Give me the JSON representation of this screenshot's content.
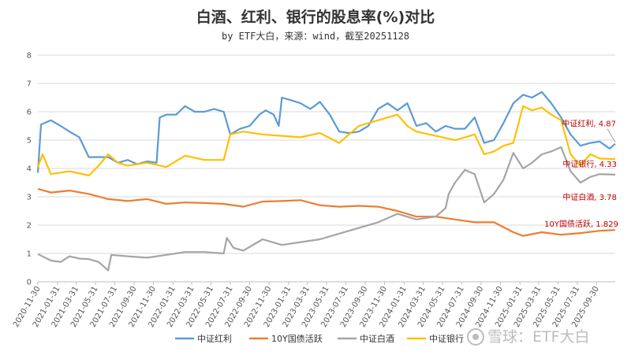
{
  "chart_data": {
    "type": "line",
    "title": "白酒、红利、银行的股息率(%)对比",
    "subtitle": "by ETF大白，来源：wind，截至20251128",
    "ylim": [
      0,
      8
    ],
    "yticks": [
      "0",
      "1",
      "2",
      "3",
      "4",
      "5",
      "6",
      "7",
      "8"
    ],
    "grid": true,
    "legend_position": "bottom",
    "x_range": [
      "2020-11-30",
      "2025-11-28"
    ],
    "x_tick_labels": [
      "2020-11-30",
      "2021-01-31",
      "2021-03-31",
      "2021-05-31",
      "2021-07-31",
      "2021-09-30",
      "2021-11-30",
      "2022-01-31",
      "2022-03-31",
      "2022-05-31",
      "2022-07-31",
      "2022-09-30",
      "2022-11-30",
      "2023-01-31",
      "2023-03-31",
      "2023-05-31",
      "2023-07-31",
      "2023-09-30",
      "2023-11-30",
      "2024-01-31",
      "2024-03-31",
      "2024-05-31",
      "2024-07-31",
      "2024-09-30",
      "2024-11-30",
      "2025-01-31",
      "2025-03-31",
      "2025-05-31",
      "2025-07-31",
      "2025-09-30"
    ],
    "series": [
      {
        "name": "中证红利",
        "color": "#5b9bd5",
        "points": [
          [
            "2020-11-30",
            3.85
          ],
          [
            "2020-12-10",
            5.55
          ],
          [
            "2021-01-10",
            5.7
          ],
          [
            "2021-02-10",
            5.5
          ],
          [
            "2021-03-10",
            5.3
          ],
          [
            "2021-04-10",
            5.1
          ],
          [
            "2021-05-10",
            4.4
          ],
          [
            "2021-06-10",
            4.4
          ],
          [
            "2021-07-10",
            4.4
          ],
          [
            "2021-08-10",
            4.2
          ],
          [
            "2021-09-10",
            4.3
          ],
          [
            "2021-10-10",
            4.15
          ],
          [
            "2021-11-10",
            4.25
          ],
          [
            "2021-12-10",
            4.2
          ],
          [
            "2021-12-20",
            5.8
          ],
          [
            "2022-01-10",
            5.9
          ],
          [
            "2022-02-10",
            5.9
          ],
          [
            "2022-03-10",
            6.2
          ],
          [
            "2022-04-10",
            6.0
          ],
          [
            "2022-05-10",
            6.0
          ],
          [
            "2022-06-10",
            6.1
          ],
          [
            "2022-07-10",
            6.0
          ],
          [
            "2022-07-31",
            5.2
          ],
          [
            "2022-08-31",
            5.4
          ],
          [
            "2022-09-30",
            5.5
          ],
          [
            "2022-10-31",
            5.9
          ],
          [
            "2022-11-20",
            6.05
          ],
          [
            "2022-12-15",
            5.9
          ],
          [
            "2022-12-31",
            5.5
          ],
          [
            "2023-01-10",
            6.5
          ],
          [
            "2023-02-10",
            6.4
          ],
          [
            "2023-03-10",
            6.3
          ],
          [
            "2023-04-10",
            6.1
          ],
          [
            "2023-05-10",
            6.35
          ],
          [
            "2023-06-10",
            5.9
          ],
          [
            "2023-07-10",
            5.3
          ],
          [
            "2023-08-10",
            5.25
          ],
          [
            "2023-09-10",
            5.3
          ],
          [
            "2023-10-10",
            5.5
          ],
          [
            "2023-11-10",
            6.1
          ],
          [
            "2023-12-10",
            6.3
          ],
          [
            "2024-01-10",
            6.05
          ],
          [
            "2024-02-10",
            6.3
          ],
          [
            "2024-03-10",
            5.5
          ],
          [
            "2024-04-10",
            5.6
          ],
          [
            "2024-05-10",
            5.3
          ],
          [
            "2024-06-10",
            5.5
          ],
          [
            "2024-07-10",
            5.4
          ],
          [
            "2024-08-10",
            5.4
          ],
          [
            "2024-09-10",
            5.8
          ],
          [
            "2024-10-10",
            4.9
          ],
          [
            "2024-11-10",
            5.0
          ],
          [
            "2024-12-10",
            5.6
          ],
          [
            "2025-01-10",
            6.3
          ],
          [
            "2025-02-10",
            6.6
          ],
          [
            "2025-03-10",
            6.5
          ],
          [
            "2025-04-10",
            6.7
          ],
          [
            "2025-05-10",
            6.3
          ],
          [
            "2025-06-10",
            5.8
          ],
          [
            "2025-07-10",
            5.2
          ],
          [
            "2025-08-10",
            4.8
          ],
          [
            "2025-09-10",
            4.9
          ],
          [
            "2025-10-10",
            4.95
          ],
          [
            "2025-11-10",
            4.7
          ],
          [
            "2025-11-28",
            4.87
          ]
        ]
      },
      {
        "name": "10Y国债活跃",
        "color": "#ed7d31",
        "points": [
          [
            "2020-11-30",
            3.28
          ],
          [
            "2021-01-10",
            3.15
          ],
          [
            "2021-03-10",
            3.22
          ],
          [
            "2021-05-10",
            3.1
          ],
          [
            "2021-07-10",
            2.92
          ],
          [
            "2021-09-10",
            2.85
          ],
          [
            "2021-11-10",
            2.92
          ],
          [
            "2022-01-10",
            2.75
          ],
          [
            "2022-03-10",
            2.8
          ],
          [
            "2022-05-10",
            2.78
          ],
          [
            "2022-07-10",
            2.75
          ],
          [
            "2022-09-10",
            2.65
          ],
          [
            "2022-11-10",
            2.83
          ],
          [
            "2023-01-10",
            2.85
          ],
          [
            "2023-03-10",
            2.88
          ],
          [
            "2023-05-10",
            2.7
          ],
          [
            "2023-07-10",
            2.65
          ],
          [
            "2023-09-10",
            2.68
          ],
          [
            "2023-11-10",
            2.65
          ],
          [
            "2024-01-10",
            2.5
          ],
          [
            "2024-03-10",
            2.3
          ],
          [
            "2024-05-10",
            2.3
          ],
          [
            "2024-07-10",
            2.2
          ],
          [
            "2024-09-10",
            2.1
          ],
          [
            "2024-11-10",
            2.1
          ],
          [
            "2025-01-10",
            1.75
          ],
          [
            "2025-02-10",
            1.62
          ],
          [
            "2025-04-10",
            1.75
          ],
          [
            "2025-06-10",
            1.66
          ],
          [
            "2025-08-10",
            1.72
          ],
          [
            "2025-10-10",
            1.8
          ],
          [
            "2025-11-28",
            1.829
          ]
        ]
      },
      {
        "name": "中证白酒",
        "color": "#a5a5a5",
        "points": [
          [
            "2020-11-30",
            0.98
          ],
          [
            "2021-01-10",
            0.75
          ],
          [
            "2021-02-10",
            0.7
          ],
          [
            "2021-03-10",
            0.9
          ],
          [
            "2021-04-10",
            0.82
          ],
          [
            "2021-05-10",
            0.8
          ],
          [
            "2021-06-10",
            0.7
          ],
          [
            "2021-07-10",
            0.4
          ],
          [
            "2021-07-20",
            0.95
          ],
          [
            "2021-09-10",
            0.9
          ],
          [
            "2021-11-10",
            0.85
          ],
          [
            "2022-01-10",
            0.95
          ],
          [
            "2022-03-10",
            1.05
          ],
          [
            "2022-05-10",
            1.05
          ],
          [
            "2022-07-10",
            1.0
          ],
          [
            "2022-07-20",
            1.55
          ],
          [
            "2022-08-10",
            1.2
          ],
          [
            "2022-09-10",
            1.1
          ],
          [
            "2022-11-10",
            1.5
          ],
          [
            "2023-01-10",
            1.3
          ],
          [
            "2023-03-10",
            1.4
          ],
          [
            "2023-05-10",
            1.5
          ],
          [
            "2023-07-10",
            1.7
          ],
          [
            "2023-09-10",
            1.9
          ],
          [
            "2023-11-10",
            2.1
          ],
          [
            "2024-01-10",
            2.4
          ],
          [
            "2024-03-10",
            2.2
          ],
          [
            "2024-05-10",
            2.3
          ],
          [
            "2024-06-10",
            2.6
          ],
          [
            "2024-06-20",
            3.1
          ],
          [
            "2024-07-10",
            3.5
          ],
          [
            "2024-08-10",
            3.95
          ],
          [
            "2024-09-10",
            3.8
          ],
          [
            "2024-10-10",
            2.8
          ],
          [
            "2024-11-10",
            3.1
          ],
          [
            "2024-12-10",
            3.6
          ],
          [
            "2025-01-10",
            4.55
          ],
          [
            "2025-02-10",
            4.0
          ],
          [
            "2025-03-10",
            4.2
          ],
          [
            "2025-04-10",
            4.5
          ],
          [
            "2025-05-10",
            4.6
          ],
          [
            "2025-06-10",
            4.75
          ],
          [
            "2025-07-10",
            3.9
          ],
          [
            "2025-08-10",
            3.5
          ],
          [
            "2025-09-10",
            3.7
          ],
          [
            "2025-10-10",
            3.8
          ],
          [
            "2025-11-28",
            3.78
          ]
        ]
      },
      {
        "name": "中证银行",
        "color": "#ffc000",
        "points": [
          [
            "2020-11-30",
            4.05
          ],
          [
            "2020-12-15",
            4.5
          ],
          [
            "2021-01-10",
            3.8
          ],
          [
            "2021-03-10",
            3.9
          ],
          [
            "2021-05-10",
            3.75
          ],
          [
            "2021-06-10",
            4.1
          ],
          [
            "2021-07-10",
            4.5
          ],
          [
            "2021-08-10",
            4.2
          ],
          [
            "2021-09-10",
            4.1
          ],
          [
            "2021-11-10",
            4.2
          ],
          [
            "2022-01-10",
            4.05
          ],
          [
            "2022-03-10",
            4.45
          ],
          [
            "2022-05-10",
            4.3
          ],
          [
            "2022-07-10",
            4.3
          ],
          [
            "2022-07-31",
            5.2
          ],
          [
            "2022-09-10",
            5.3
          ],
          [
            "2022-11-10",
            5.2
          ],
          [
            "2023-01-10",
            5.15
          ],
          [
            "2023-03-10",
            5.1
          ],
          [
            "2023-05-10",
            5.25
          ],
          [
            "2023-07-10",
            4.9
          ],
          [
            "2023-09-10",
            5.5
          ],
          [
            "2023-11-10",
            5.7
          ],
          [
            "2024-01-10",
            5.9
          ],
          [
            "2024-02-10",
            5.5
          ],
          [
            "2024-03-10",
            5.3
          ],
          [
            "2024-05-10",
            5.15
          ],
          [
            "2024-07-10",
            5.0
          ],
          [
            "2024-08-10",
            5.1
          ],
          [
            "2024-09-10",
            5.2
          ],
          [
            "2024-10-10",
            4.5
          ],
          [
            "2024-11-10",
            4.6
          ],
          [
            "2024-12-10",
            4.8
          ],
          [
            "2025-01-10",
            4.9
          ],
          [
            "2025-02-10",
            6.2
          ],
          [
            "2025-03-10",
            6.05
          ],
          [
            "2025-04-10",
            6.15
          ],
          [
            "2025-05-10",
            5.9
          ],
          [
            "2025-06-10",
            5.7
          ],
          [
            "2025-07-10",
            4.5
          ],
          [
            "2025-08-10",
            4.1
          ],
          [
            "2025-09-10",
            4.5
          ],
          [
            "2025-10-10",
            4.35
          ],
          [
            "2025-11-28",
            4.33
          ]
        ]
      }
    ],
    "annotations": [
      {
        "series": 0,
        "text": "中证红利, 4.87",
        "color": "#c00000"
      },
      {
        "series": 3,
        "text": "中证银行, 4.33",
        "color": "#c00000"
      },
      {
        "series": 2,
        "text": "中证白酒, 3.78",
        "color": "#c00000"
      },
      {
        "series": 1,
        "text": "10Y国债活跃, 1.829",
        "color": "#c00000"
      }
    ],
    "watermark": "雪球：ETF大白"
  }
}
